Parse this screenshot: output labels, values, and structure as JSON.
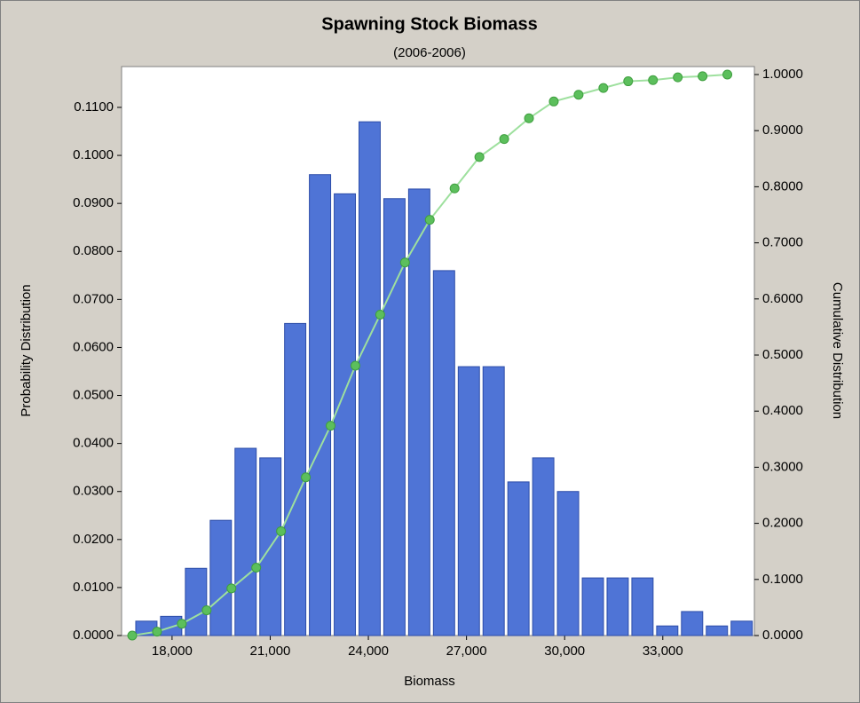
{
  "chart_data": {
    "type": "histogram",
    "title": "Spawning Stock Biomass",
    "subtitle": "(2006-2006)",
    "x_label": "Biomass",
    "y_label": "Probability Distribution",
    "y2_label": "Cumulative Distribution",
    "bins": [
      16836,
      17594,
      18352,
      19111,
      19869,
      20627,
      21385,
      22143,
      22902,
      23660,
      24418,
      25176,
      25934,
      26693,
      27451,
      28209,
      28967,
      29725,
      30484,
      31242,
      32000,
      32758,
      33516,
      34275,
      35033,
      35791
    ],
    "values": [
      0.003,
      0.004,
      0.014,
      0.024,
      0.039,
      0.037,
      0.065,
      0.096,
      0.092,
      0.107,
      0.091,
      0.093,
      0.076,
      0.056,
      0.056,
      0.032,
      0.037,
      0.03,
      0.012,
      0.012,
      0.012,
      0.002,
      0.005,
      0.002,
      0.003
    ],
    "color": "#4f74d6",
    "cumulative": {
      "type": "line",
      "axis": "y2",
      "color": "#5cbf5c",
      "x": [
        16782,
        17540,
        18298,
        19056,
        19814,
        20572,
        21330,
        22088,
        22846,
        23604,
        24362,
        25120,
        25878,
        26636,
        27394,
        28152,
        28910,
        29668,
        30426,
        31184,
        31942,
        32700,
        33458,
        34216,
        34974
      ],
      "values": [
        0.0,
        0.007,
        0.021,
        0.045,
        0.084,
        0.121,
        0.186,
        0.282,
        0.374,
        0.481,
        0.572,
        0.665,
        0.741,
        0.797,
        0.853,
        0.885,
        0.922,
        0.952,
        0.964,
        0.976,
        0.988,
        0.99,
        0.995,
        0.997,
        1.0
      ]
    },
    "xlim": [
      16457,
      35800
    ],
    "ylim": [
      0,
      0.1185
    ],
    "y2lim": [
      0,
      1.0142
    ],
    "xticks": [
      {
        "value": 18000,
        "label": "18,000"
      },
      {
        "value": 21000,
        "label": "21,000"
      },
      {
        "value": 24000,
        "label": "24,000"
      },
      {
        "value": 27000,
        "label": "27,000"
      },
      {
        "value": 30000,
        "label": "30,000"
      },
      {
        "value": 33000,
        "label": "33,000"
      }
    ],
    "yticks": [
      {
        "value": 0,
        "label": "0.0000"
      },
      {
        "value": 0.01,
        "label": "0.0100"
      },
      {
        "value": 0.02,
        "label": "0.0200"
      },
      {
        "value": 0.03,
        "label": "0.0300"
      },
      {
        "value": 0.04,
        "label": "0.0400"
      },
      {
        "value": 0.05,
        "label": "0.0500"
      },
      {
        "value": 0.06,
        "label": "0.0600"
      },
      {
        "value": 0.07,
        "label": "0.0700"
      },
      {
        "value": 0.08,
        "label": "0.0800"
      },
      {
        "value": 0.09,
        "label": "0.0900"
      },
      {
        "value": 0.1,
        "label": "0.1000"
      },
      {
        "value": 0.11,
        "label": "0.1100"
      }
    ],
    "y2ticks": [
      {
        "value": 0,
        "label": "0.0000"
      },
      {
        "value": 0.1,
        "label": "0.1000"
      },
      {
        "value": 0.2,
        "label": "0.2000"
      },
      {
        "value": 0.3,
        "label": "0.3000"
      },
      {
        "value": 0.4,
        "label": "0.4000"
      },
      {
        "value": 0.5,
        "label": "0.5000"
      },
      {
        "value": 0.6,
        "label": "0.6000"
      },
      {
        "value": 0.7,
        "label": "0.7000"
      },
      {
        "value": 0.8,
        "label": "0.8000"
      },
      {
        "value": 0.9,
        "label": "0.9000"
      },
      {
        "value": 1.0,
        "label": "1.0000"
      }
    ]
  }
}
